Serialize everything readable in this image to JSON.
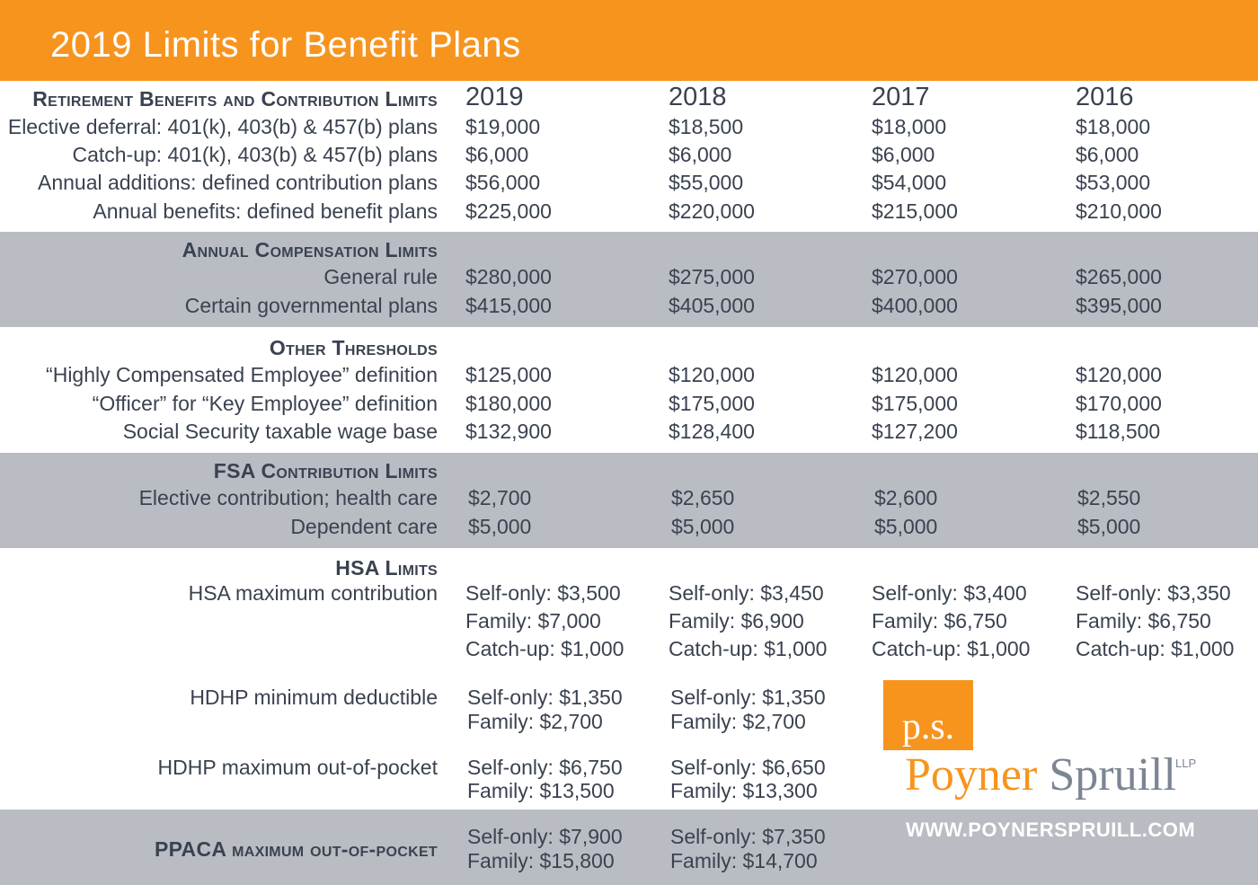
{
  "title": "2019 Limits for Benefit Plans",
  "years": [
    "2019",
    "2018",
    "2017",
    "2016"
  ],
  "retirement": {
    "heading": "Retirement Benefits and Contribution Limits",
    "rows": [
      {
        "label": "Elective deferral: 401(k), 403(b) & 457(b) plans",
        "values": [
          "$19,000",
          "$18,500",
          "$18,000",
          "$18,000"
        ]
      },
      {
        "label": "Catch-up: 401(k), 403(b) & 457(b) plans",
        "values": [
          "$6,000",
          "$6,000",
          "$6,000",
          "$6,000"
        ]
      },
      {
        "label": "Annual additions: defined contribution plans",
        "values": [
          "$56,000",
          "$55,000",
          "$54,000",
          "$53,000"
        ]
      },
      {
        "label": "Annual benefits: defined benefit plans",
        "values": [
          "$225,000",
          "$220,000",
          "$215,000",
          "$210,000"
        ]
      }
    ]
  },
  "compensation": {
    "heading": "Annual Compensation Limits",
    "rows": [
      {
        "label": "General rule",
        "values": [
          "$280,000",
          "$275,000",
          "$270,000",
          "$265,000"
        ]
      },
      {
        "label": "Certain governmental plans",
        "values": [
          "$415,000",
          "$405,000",
          "$400,000",
          "$395,000"
        ]
      }
    ]
  },
  "thresholds": {
    "heading": "Other Thresholds",
    "rows": [
      {
        "label": "“Highly Compensated Employee” definition",
        "values": [
          "$125,000",
          "$120,000",
          "$120,000",
          "$120,000"
        ]
      },
      {
        "label": "“Officer” for “Key Employee” definition",
        "values": [
          "$180,000",
          "$175,000",
          "$175,000",
          "$170,000"
        ]
      },
      {
        "label": "Social Security taxable wage base",
        "values": [
          "$132,900",
          "$128,400",
          "$127,200",
          "$118,500"
        ]
      }
    ]
  },
  "fsa": {
    "heading": "FSA Contribution Limits",
    "rows": [
      {
        "label": "Elective contribution; health care",
        "values": [
          "$2,700",
          "$2,650",
          "$2,600",
          "$2,550"
        ]
      },
      {
        "label": "Dependent care",
        "values": [
          "$5,000",
          "$5,000",
          "$5,000",
          "$5,000"
        ]
      }
    ]
  },
  "hsa": {
    "heading": "HSA Limits",
    "contribution": {
      "label": "HSA maximum contribution",
      "values": [
        [
          "Self-only: $3,500",
          "Family: $7,000",
          "Catch-up: $1,000"
        ],
        [
          "Self-only: $3,450",
          "Family: $6,900",
          "Catch-up: $1,000"
        ],
        [
          "Self-only: $3,400",
          "Family: $6,750",
          "Catch-up: $1,000"
        ],
        [
          "Self-only: $3,350",
          "Family: $6,750",
          "Catch-up: $1,000"
        ]
      ]
    },
    "deductible": {
      "label": "HDHP minimum deductible",
      "values": [
        [
          "Self-only: $1,350",
          "Family: $2,700"
        ],
        [
          "Self-only: $1,350",
          "Family: $2,700"
        ]
      ]
    },
    "oop": {
      "label": "HDHP maximum out-of-pocket",
      "values": [
        [
          "Self-only: $6,750",
          "Family: $13,500"
        ],
        [
          "Self-only: $6,650",
          "Family: $13,300"
        ]
      ]
    }
  },
  "ppaca": {
    "heading": "PPACA maximum out-of-pocket",
    "values": [
      [
        "Self-only: $7,900",
        "Family: $15,800"
      ],
      [
        "Self-only: $7,350",
        "Family: $14,700"
      ]
    ]
  },
  "logo": {
    "mark": "p.s.",
    "name_first": "Poyner",
    "name_second": "Spruill",
    "suffix": "LLP",
    "url": "WWW.POYNERSPRUILL.COM"
  },
  "colors": {
    "accent": "#f7941e",
    "band": "#b9bcc3",
    "text": "#3a4250"
  }
}
